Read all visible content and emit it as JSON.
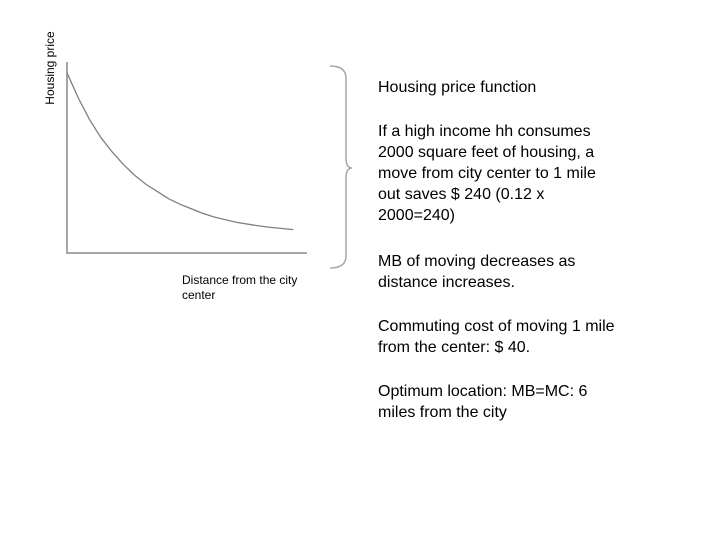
{
  "chart_data": {
    "type": "line",
    "title": "",
    "xlabel": "Distance from the city center",
    "ylabel": "Housing price",
    "grid": false,
    "series": [
      {
        "name": "",
        "x": [
          0,
          0.5,
          1,
          1.5,
          2,
          2.5,
          3,
          3.5,
          4,
          4.5,
          5,
          5.5,
          6,
          6.5,
          7,
          7.5,
          8,
          8.5,
          9,
          9.5,
          10
        ],
        "y": [
          10,
          8.6,
          7.4,
          6.4,
          5.6,
          4.9,
          4.3,
          3.8,
          3.4,
          3.0,
          2.7,
          2.45,
          2.2,
          2.0,
          1.85,
          1.7,
          1.6,
          1.5,
          1.42,
          1.36,
          1.3
        ]
      }
    ],
    "xlim": [
      0,
      10.6
    ],
    "ylim": [
      0,
      10.6
    ],
    "color": "#7f7f7f"
  },
  "notes": [
    "Housing price function",
    "If a high income hh consumes 2000 square feet of housing, a move from city center to 1 mile out saves  $ 240 (0.12 x 2000=240)",
    "MB of moving decreases as distance increases.",
    "Commuting cost of moving 1 mile from the center: $ 40.",
    "Optimum location: MB=MC: 6 miles from the city"
  ]
}
